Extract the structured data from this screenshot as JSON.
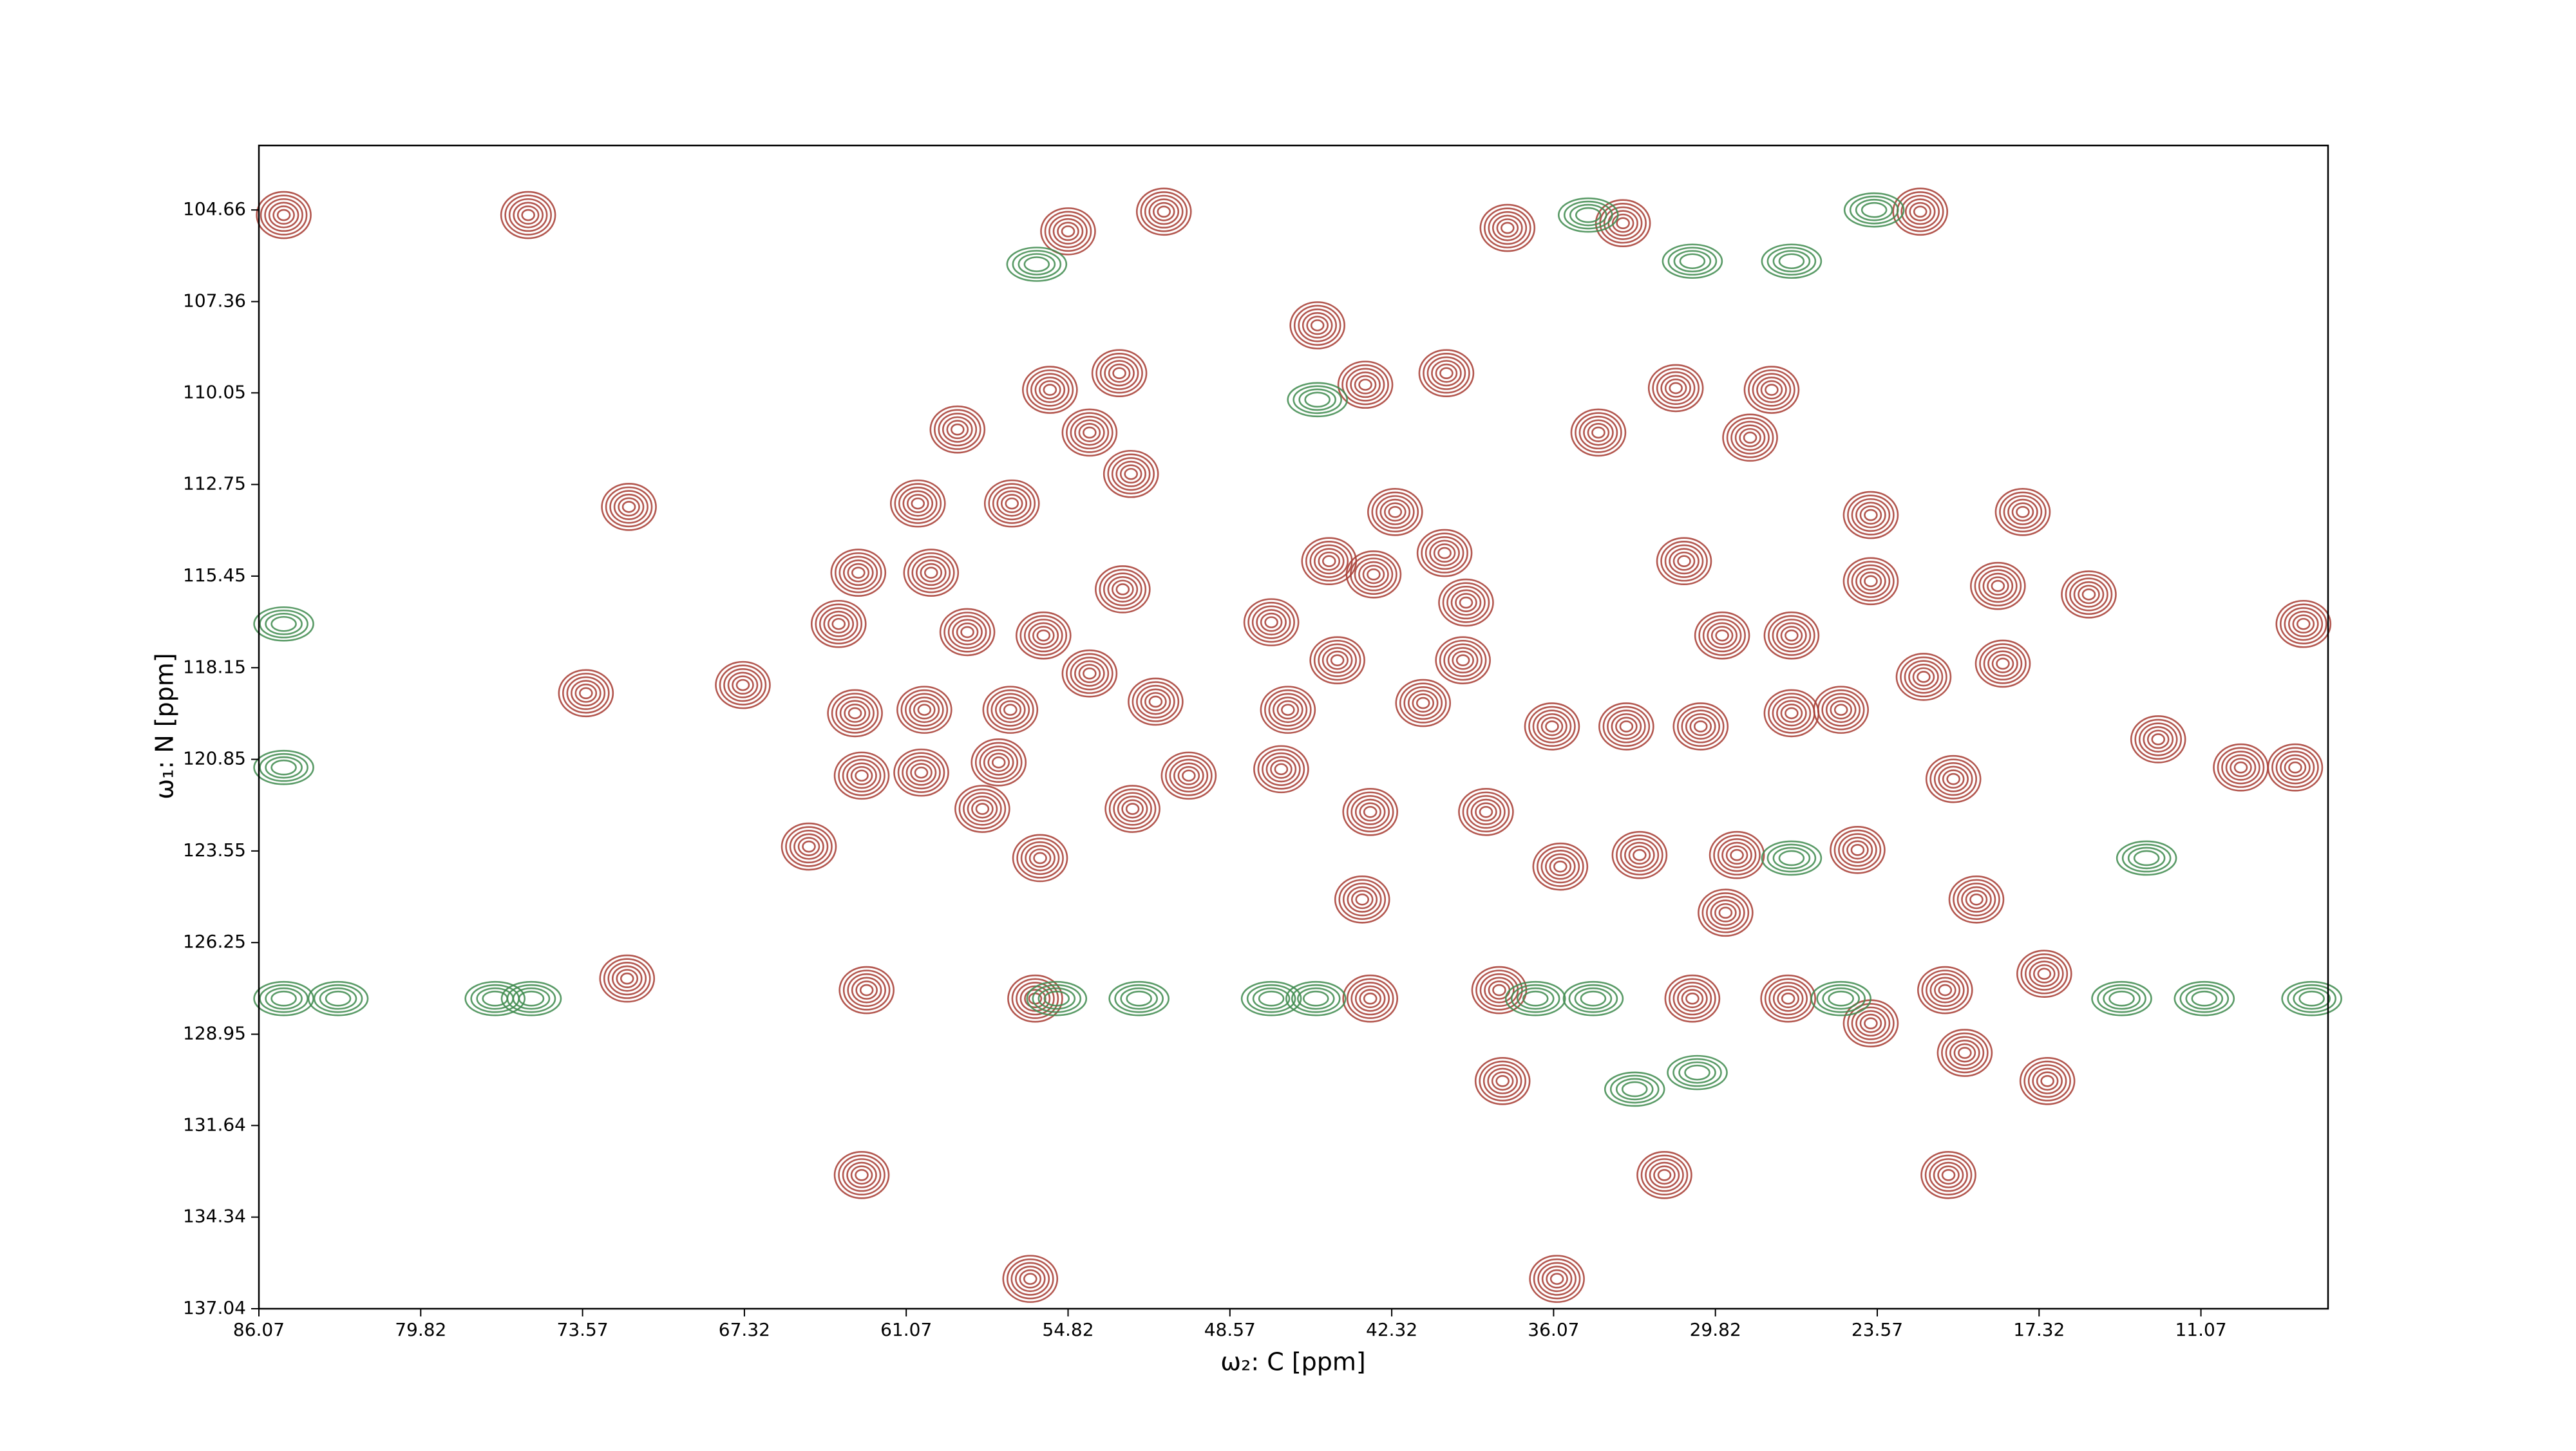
{
  "chart_data": {
    "type": "contour",
    "x_label": "ω₂: C [ppm]",
    "y_label": "ω₁: N [ppm]",
    "xlim": [
      86.07,
      6.16
    ],
    "ylim": [
      137.04,
      102.76
    ],
    "xticks": [
      86.07,
      79.82,
      73.57,
      67.32,
      61.07,
      54.82,
      48.57,
      42.32,
      36.07,
      29.82,
      23.57,
      17.32,
      11.07
    ],
    "yticks": [
      104.66,
      107.36,
      110.05,
      112.75,
      115.45,
      118.15,
      120.85,
      123.55,
      126.25,
      128.95,
      131.64,
      134.34,
      137.04
    ],
    "series": [
      {
        "color": "#a63a30",
        "x": [
          85.11,
          75.67,
          54.82,
          51.12,
          37.85,
          33.39,
          21.91,
          45.19,
          43.34,
          40.21,
          55.52,
          52.84,
          31.35,
          27.65,
          59.09,
          53.99,
          52.39,
          34.34,
          28.48,
          71.78,
          60.62,
          56.99,
          42.19,
          40.28,
          23.82,
          17.95,
          18.91,
          62.92,
          60.11,
          52.71,
          44.74,
          43.02,
          46.97,
          39.45,
          31.03,
          23.82,
          15.4,
          63.68,
          58.71,
          55.77,
          29.56,
          26.88,
          73.44,
          67.38,
          63.05,
          60.37,
          57.05,
          53.99,
          51.44,
          46.33,
          44.42,
          41.11,
          39.57,
          36.13,
          33.26,
          30.39,
          26.88,
          24.97,
          21.78,
          18.72,
          46.59,
          62.79,
          60.49,
          57.5,
          52.33,
          20.63,
          12.72,
          64.83,
          55.9,
          43.15,
          38.68,
          35.81,
          32.75,
          28.99,
          24.33,
          43.46,
          19.74,
          29.43,
          71.85,
          62.6,
          56.09,
          43.15,
          38.17,
          30.71,
          27.01,
          17.12,
          20.95,
          23.82,
          20.19,
          38.04,
          17.0,
          62.79,
          20.82,
          31.79,
          35.94,
          56.28,
          50.16,
          58.13,
          9.53,
          7.43,
          7.11
        ],
        "y": [
          104.81,
          104.81,
          105.29,
          104.71,
          105.19,
          105.05,
          104.71,
          108.06,
          109.81,
          109.47,
          109.96,
          109.47,
          109.91,
          109.96,
          111.13,
          111.22,
          112.44,
          111.22,
          111.37,
          113.41,
          113.31,
          113.31,
          113.56,
          114.77,
          113.65,
          113.56,
          115.74,
          115.35,
          115.35,
          115.84,
          115.01,
          115.4,
          116.81,
          116.23,
          115.01,
          115.6,
          115.99,
          116.86,
          117.1,
          117.2,
          117.2,
          117.2,
          118.9,
          118.66,
          119.49,
          119.39,
          119.39,
          118.32,
          119.15,
          119.39,
          117.93,
          119.19,
          117.93,
          119.88,
          119.88,
          119.88,
          119.49,
          119.39,
          118.42,
          118.03,
          121.14,
          121.33,
          121.24,
          120.94,
          122.31,
          121.43,
          120.26,
          123.42,
          123.76,
          122.4,
          122.4,
          124.01,
          123.67,
          123.67,
          123.52,
          124.98,
          124.98,
          125.37,
          127.31,
          127.65,
          127.9,
          127.9,
          127.65,
          127.9,
          127.9,
          127.17,
          127.65,
          128.63,
          129.5,
          130.33,
          130.33,
          133.1,
          133.1,
          133.1,
          136.16,
          136.16,
          121.33,
          122.31,
          121.09,
          121.09,
          116.86
        ]
      },
      {
        "color": "#3d8a4c",
        "x": [
          85.11,
          83.01,
          76.95,
          75.55,
          55.26,
          52.08,
          46.97,
          45.25,
          36.77,
          34.54,
          24.97,
          14.13,
          10.94,
          6.79,
          85.11,
          85.11,
          26.88,
          13.17,
          34.73,
          26.88,
          30.71,
          45.19,
          32.94,
          30.52,
          23.69,
          56.03
        ],
        "y": [
          127.9,
          127.9,
          127.9,
          127.9,
          127.9,
          127.9,
          127.9,
          127.9,
          127.9,
          127.9,
          127.9,
          127.9,
          127.9,
          127.9,
          121.09,
          116.86,
          123.76,
          123.76,
          104.81,
          106.17,
          106.17,
          110.25,
          130.57,
          130.08,
          104.66,
          106.26
        ]
      }
    ]
  }
}
